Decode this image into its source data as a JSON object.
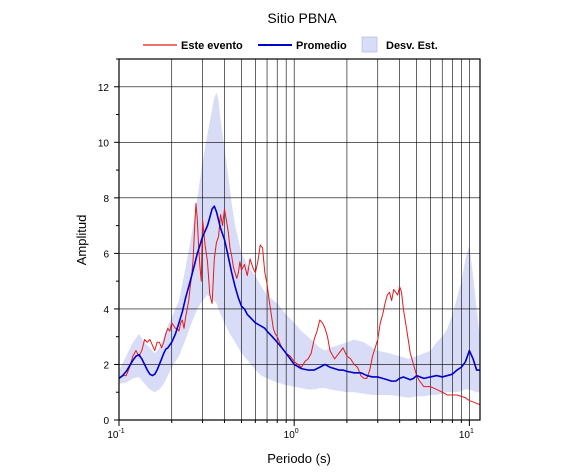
{
  "chart_data": {
    "type": "line",
    "title": "Sitio PBNA",
    "xlabel": "Periodo (s)",
    "ylabel": "Amplitud",
    "x_scale": "log",
    "xlim": [
      0.1,
      11.5
    ],
    "ylim": [
      0,
      13
    ],
    "grid": true,
    "legend_position": "top",
    "y_ticks": [
      "0",
      "2",
      "4",
      "6",
      "8",
      "10",
      "12"
    ],
    "x_ticks": [
      {
        "base": "10",
        "exp": "-1",
        "value": 0.1
      },
      {
        "base": "10",
        "exp": "0",
        "value": 1
      },
      {
        "base": "10",
        "exp": "1",
        "value": 10
      }
    ],
    "legend": {
      "event": "Este evento",
      "mean": "Promedio",
      "std": "Desv. Est."
    },
    "colors": {
      "event": "#e41a1c",
      "mean": "#0000cc",
      "std_fill": "#d9dcf7"
    },
    "series": [
      {
        "name": "Este evento",
        "x": [
          0.1,
          0.105,
          0.11,
          0.115,
          0.12,
          0.125,
          0.13,
          0.135,
          0.14,
          0.145,
          0.15,
          0.155,
          0.16,
          0.165,
          0.17,
          0.175,
          0.18,
          0.185,
          0.19,
          0.195,
          0.2,
          0.205,
          0.21,
          0.215,
          0.22,
          0.225,
          0.23,
          0.235,
          0.24,
          0.245,
          0.25,
          0.255,
          0.26,
          0.265,
          0.27,
          0.275,
          0.28,
          0.285,
          0.29,
          0.295,
          0.3,
          0.31,
          0.32,
          0.33,
          0.34,
          0.35,
          0.36,
          0.37,
          0.38,
          0.39,
          0.4,
          0.41,
          0.42,
          0.43,
          0.44,
          0.45,
          0.46,
          0.47,
          0.48,
          0.49,
          0.5,
          0.52,
          0.54,
          0.56,
          0.58,
          0.6,
          0.62,
          0.64,
          0.66,
          0.68,
          0.7,
          0.72,
          0.74,
          0.76,
          0.78,
          0.8,
          0.85,
          0.9,
          0.95,
          1.0,
          1.05,
          1.1,
          1.15,
          1.2,
          1.25,
          1.3,
          1.35,
          1.4,
          1.45,
          1.5,
          1.55,
          1.6,
          1.7,
          1.8,
          1.9,
          2.0,
          2.1,
          2.2,
          2.3,
          2.4,
          2.5,
          2.6,
          2.7,
          2.8,
          2.9,
          3.0,
          3.1,
          3.2,
          3.3,
          3.4,
          3.5,
          3.6,
          3.7,
          3.8,
          3.9,
          4.0,
          4.1,
          4.2,
          4.3,
          4.4,
          4.5,
          4.6,
          4.8,
          5.0,
          5.2,
          5.5,
          6.0,
          6.5,
          7.0,
          7.5,
          8.0,
          8.5,
          9.0,
          9.5,
          10.0,
          10.5,
          11.0,
          11.5
        ],
        "y": [
          1.5,
          1.6,
          1.6,
          1.9,
          2.3,
          2.5,
          2.3,
          2.5,
          2.9,
          2.8,
          2.9,
          2.7,
          2.5,
          2.8,
          2.8,
          2.6,
          2.8,
          3.1,
          3.3,
          3.2,
          3.5,
          3.4,
          3.3,
          3.3,
          3.2,
          3.5,
          3.6,
          3.3,
          3.7,
          4.0,
          4.3,
          4.8,
          5.2,
          5.8,
          6.9,
          7.8,
          7.2,
          6.2,
          5.5,
          5.0,
          7.2,
          6.3,
          5.7,
          4.5,
          4.2,
          5.8,
          6.4,
          6.6,
          7.4,
          7.0,
          7.6,
          7.2,
          6.8,
          6.2,
          5.9,
          5.5,
          5.3,
          5.1,
          5.3,
          5.7,
          5.4,
          5.6,
          5.2,
          5.8,
          5.5,
          5.3,
          5.7,
          6.3,
          6.2,
          5.3,
          4.9,
          4.3,
          3.8,
          3.3,
          3.1,
          3.0,
          2.6,
          2.4,
          2.3,
          2.1,
          2.0,
          1.9,
          2.1,
          2.2,
          2.4,
          2.9,
          3.2,
          3.6,
          3.5,
          3.3,
          3.0,
          2.5,
          2.2,
          2.4,
          2.6,
          2.3,
          2.2,
          2.0,
          1.9,
          1.6,
          1.5,
          1.5,
          1.8,
          2.3,
          2.6,
          2.9,
          3.5,
          3.8,
          4.2,
          4.5,
          4.6,
          4.3,
          4.7,
          4.6,
          4.5,
          4.8,
          4.6,
          4.0,
          3.6,
          3.2,
          2.8,
          2.4,
          2.0,
          1.6,
          1.4,
          1.2,
          1.2,
          1.1,
          1.0,
          0.9,
          0.9,
          0.9,
          0.85,
          0.8,
          0.7,
          0.65,
          0.6,
          0.55
        ]
      },
      {
        "name": "Promedio",
        "x": [
          0.1,
          0.105,
          0.11,
          0.115,
          0.12,
          0.125,
          0.13,
          0.135,
          0.14,
          0.145,
          0.15,
          0.155,
          0.16,
          0.165,
          0.17,
          0.175,
          0.18,
          0.185,
          0.19,
          0.195,
          0.2,
          0.21,
          0.22,
          0.23,
          0.24,
          0.25,
          0.26,
          0.27,
          0.28,
          0.29,
          0.3,
          0.31,
          0.32,
          0.33,
          0.34,
          0.35,
          0.36,
          0.37,
          0.38,
          0.39,
          0.4,
          0.42,
          0.44,
          0.46,
          0.48,
          0.5,
          0.52,
          0.54,
          0.56,
          0.58,
          0.6,
          0.62,
          0.64,
          0.66,
          0.68,
          0.7,
          0.75,
          0.8,
          0.85,
          0.9,
          0.95,
          1.0,
          1.1,
          1.2,
          1.3,
          1.4,
          1.5,
          1.6,
          1.7,
          1.8,
          1.9,
          2.0,
          2.2,
          2.4,
          2.6,
          2.8,
          3.0,
          3.2,
          3.4,
          3.6,
          3.8,
          4.0,
          4.2,
          4.4,
          4.6,
          4.8,
          5.0,
          5.5,
          6.0,
          6.5,
          7.0,
          7.5,
          8.0,
          8.5,
          9.0,
          9.5,
          10.0,
          10.5,
          11.0,
          11.5
        ],
        "y": [
          1.5,
          1.6,
          1.75,
          1.95,
          2.15,
          2.3,
          2.35,
          2.2,
          2.0,
          1.8,
          1.65,
          1.6,
          1.65,
          1.8,
          2.0,
          2.2,
          2.4,
          2.55,
          2.6,
          2.7,
          2.8,
          3.1,
          3.5,
          3.9,
          4.4,
          4.8,
          5.2,
          5.6,
          6.0,
          6.3,
          6.6,
          6.8,
          7.0,
          7.3,
          7.6,
          7.7,
          7.5,
          7.2,
          6.9,
          6.7,
          6.5,
          5.9,
          5.3,
          4.8,
          4.4,
          4.1,
          4.0,
          3.8,
          3.7,
          3.6,
          3.5,
          3.45,
          3.4,
          3.35,
          3.3,
          3.2,
          3.0,
          2.8,
          2.6,
          2.4,
          2.2,
          2.0,
          1.85,
          1.8,
          1.8,
          1.9,
          2.0,
          1.9,
          1.85,
          1.8,
          1.8,
          1.75,
          1.7,
          1.7,
          1.6,
          1.55,
          1.55,
          1.5,
          1.45,
          1.4,
          1.4,
          1.5,
          1.55,
          1.5,
          1.45,
          1.5,
          1.6,
          1.5,
          1.55,
          1.6,
          1.55,
          1.6,
          1.65,
          1.8,
          1.9,
          2.1,
          2.5,
          2.2,
          1.8,
          1.8
        ]
      },
      {
        "name": "Desv. Est.",
        "x": [
          0.1,
          0.11,
          0.12,
          0.13,
          0.14,
          0.15,
          0.16,
          0.17,
          0.18,
          0.19,
          0.2,
          0.22,
          0.24,
          0.26,
          0.28,
          0.3,
          0.32,
          0.34,
          0.35,
          0.36,
          0.37,
          0.38,
          0.4,
          0.42,
          0.44,
          0.46,
          0.48,
          0.5,
          0.55,
          0.6,
          0.65,
          0.7,
          0.8,
          0.9,
          1.0,
          1.1,
          1.2,
          1.3,
          1.4,
          1.5,
          1.6,
          1.8,
          2.0,
          2.2,
          2.5,
          2.8,
          3.0,
          3.5,
          4.0,
          4.5,
          5.0,
          5.5,
          6.0,
          6.5,
          7.0,
          7.5,
          8.0,
          8.5,
          9.0,
          9.5,
          10.0,
          10.5,
          11.0,
          11.5
        ],
        "upper": [
          1.8,
          2.3,
          2.8,
          3.1,
          2.8,
          2.6,
          2.4,
          2.6,
          3.0,
          3.4,
          3.7,
          4.3,
          5.5,
          6.7,
          8.0,
          9.3,
          10.3,
          11.2,
          11.6,
          11.8,
          11.5,
          10.8,
          9.8,
          8.8,
          7.8,
          7.0,
          6.5,
          6.0,
          5.5,
          5.2,
          4.8,
          4.5,
          4.2,
          3.8,
          3.5,
          3.2,
          3.0,
          2.8,
          2.6,
          2.5,
          2.6,
          2.7,
          2.8,
          2.9,
          2.8,
          2.6,
          2.5,
          2.4,
          2.3,
          2.2,
          2.3,
          2.4,
          2.5,
          2.8,
          3.0,
          3.3,
          3.8,
          4.4,
          5.0,
          5.8,
          6.3,
          5.2,
          4.0,
          3.0
        ],
        "lower": [
          1.3,
          1.35,
          1.5,
          1.55,
          1.3,
          1.1,
          1.0,
          1.1,
          1.3,
          1.6,
          1.9,
          2.3,
          2.9,
          3.5,
          4.0,
          4.3,
          4.5,
          4.4,
          4.3,
          4.2,
          4.0,
          3.8,
          3.5,
          3.2,
          3.0,
          2.8,
          2.6,
          2.4,
          2.1,
          1.8,
          1.6,
          1.5,
          1.35,
          1.25,
          1.2,
          1.15,
          1.1,
          1.1,
          1.15,
          1.15,
          1.1,
          1.05,
          1.0,
          1.0,
          0.95,
          0.9,
          0.9,
          0.9,
          0.85,
          0.8,
          0.85,
          0.85,
          0.9,
          0.9,
          0.95,
          1.0,
          1.0,
          1.0,
          1.05,
          1.1,
          1.1,
          1.05,
          1.0,
          1.0
        ]
      }
    ]
  }
}
